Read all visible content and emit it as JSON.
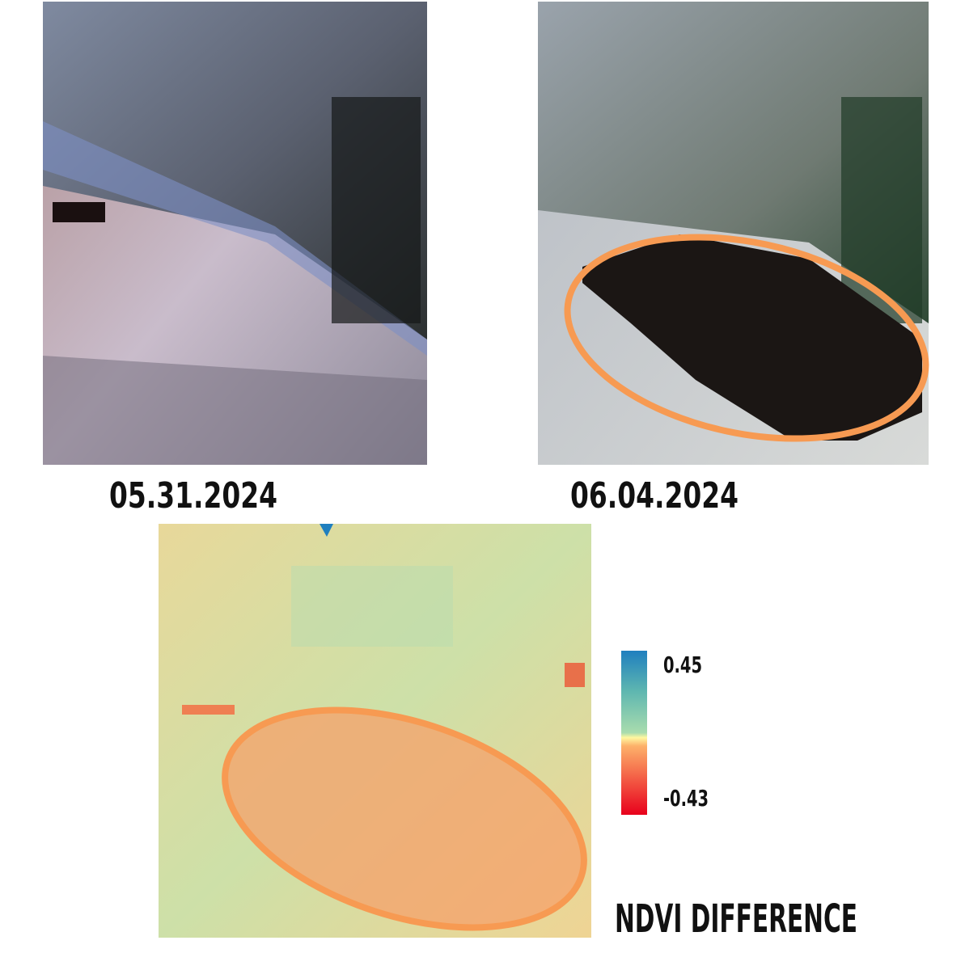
{
  "panels": [
    {
      "date": "05.31.2024"
    },
    {
      "date": "06.04.2024"
    }
  ],
  "ndvi": {
    "title": "NDVI DIFFERENCE",
    "colorbar": {
      "max": 0.45,
      "min": -0.43
    }
  }
}
